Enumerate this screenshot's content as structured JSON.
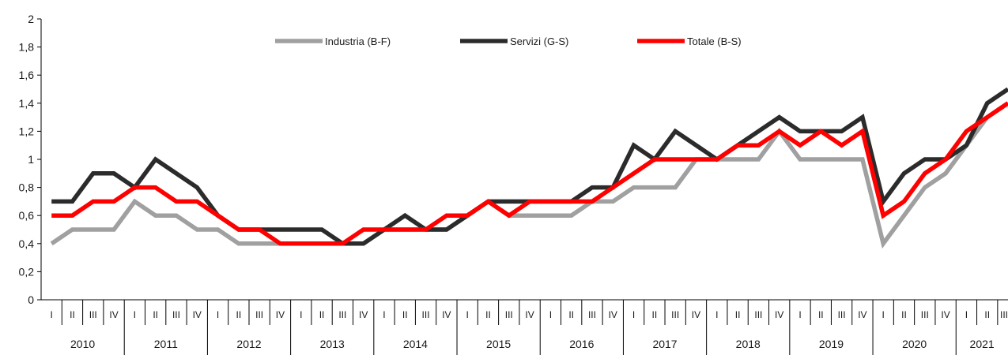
{
  "chart_data": {
    "type": "line",
    "title": "",
    "xlabel": "",
    "ylabel": "",
    "ylim": [
      0,
      2
    ],
    "y_ticks": [
      "0",
      "0,2",
      "0,4",
      "0,6",
      "0,8",
      "1",
      "1,2",
      "1,4",
      "1,6",
      "1,8",
      "2"
    ],
    "grid": false,
    "legend_position": "top-center",
    "quarter_labels": [
      "I",
      "II",
      "III",
      "IV"
    ],
    "years": [
      "2010",
      "2011",
      "2012",
      "2013",
      "2014",
      "2015",
      "2016",
      "2017",
      "2018",
      "2019",
      "2020",
      "2021"
    ],
    "quarters_per_year": [
      4,
      4,
      4,
      4,
      4,
      4,
      4,
      4,
      4,
      4,
      4,
      3
    ],
    "series": [
      {
        "name": "Industria (B-F)",
        "color": "#a0a0a0",
        "values": [
          0.4,
          0.5,
          0.5,
          0.5,
          0.7,
          0.6,
          0.6,
          0.5,
          0.5,
          0.4,
          0.4,
          0.4,
          0.4,
          0.4,
          0.4,
          0.4,
          0.5,
          0.5,
          0.5,
          0.5,
          0.6,
          0.7,
          0.6,
          0.6,
          0.6,
          0.6,
          0.7,
          0.7,
          0.8,
          0.8,
          0.8,
          1.0,
          1.0,
          1.0,
          1.0,
          1.2,
          1.0,
          1.0,
          1.0,
          1.0,
          0.4,
          0.6,
          0.8,
          0.9,
          1.1,
          1.3,
          1.4
        ]
      },
      {
        "name": "Servizi (G-S)",
        "color": "#2b2b2b",
        "values": [
          0.7,
          0.7,
          0.9,
          0.9,
          0.8,
          1.0,
          0.9,
          0.8,
          0.6,
          0.5,
          0.5,
          0.5,
          0.5,
          0.5,
          0.4,
          0.4,
          0.5,
          0.6,
          0.5,
          0.5,
          0.6,
          0.7,
          0.7,
          0.7,
          0.7,
          0.7,
          0.8,
          0.8,
          1.1,
          1.0,
          1.2,
          1.1,
          1.0,
          1.1,
          1.2,
          1.3,
          1.2,
          1.2,
          1.2,
          1.3,
          0.7,
          0.9,
          1.0,
          1.0,
          1.1,
          1.4,
          1.5
        ]
      },
      {
        "name": "Totale (B-S)",
        "color": "#ff0000",
        "values": [
          0.6,
          0.6,
          0.7,
          0.7,
          0.8,
          0.8,
          0.7,
          0.7,
          0.6,
          0.5,
          0.5,
          0.4,
          0.4,
          0.4,
          0.4,
          0.5,
          0.5,
          0.5,
          0.5,
          0.6,
          0.6,
          0.7,
          0.6,
          0.7,
          0.7,
          0.7,
          0.7,
          0.8,
          0.9,
          1.0,
          1.0,
          1.0,
          1.0,
          1.1,
          1.1,
          1.2,
          1.1,
          1.2,
          1.1,
          1.2,
          0.6,
          0.7,
          0.9,
          1.0,
          1.2,
          1.3,
          1.4
        ]
      }
    ]
  }
}
